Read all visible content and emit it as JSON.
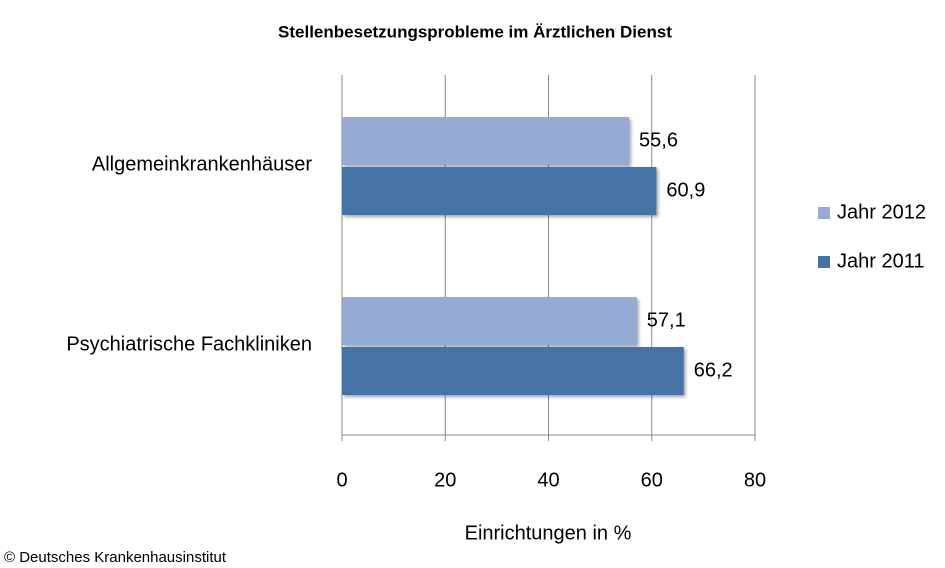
{
  "chart_data": {
    "type": "bar",
    "orientation": "horizontal",
    "title": "Stellenbesetzungsprobleme im Ärztlichen Dienst",
    "xlabel": "Einrichtungen in %",
    "source": "© Deutsches Krankenhausinstitut",
    "categories": [
      "Allgemeinkrankenhäuser",
      "Psychiatrische Fachkliniken"
    ],
    "series": [
      {
        "name": "Jahr 2012",
        "color": "#95abd3",
        "values": [
          55.6,
          57.1
        ],
        "value_labels": [
          "55,6",
          "57,1"
        ]
      },
      {
        "name": "Jahr 2011",
        "color": "#4572a7",
        "values": [
          60.9,
          66.2
        ],
        "value_labels": [
          "60,9",
          "66,2"
        ]
      }
    ],
    "xlim": [
      0,
      80
    ],
    "xticks": [
      0,
      20,
      40,
      60,
      80
    ],
    "grid": true,
    "legend": "right"
  }
}
